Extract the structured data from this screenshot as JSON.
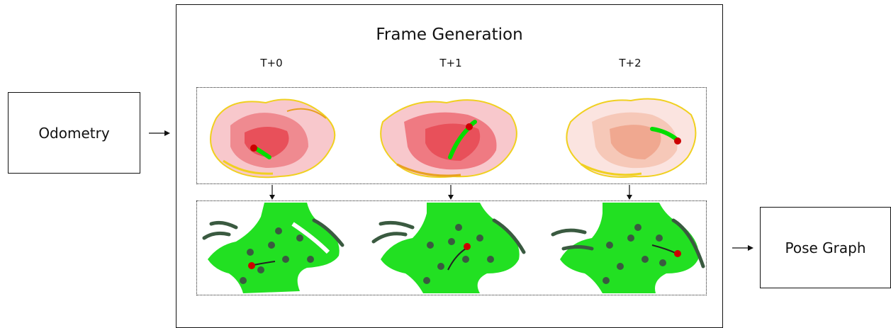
{
  "odometry": {
    "label": "Odometry"
  },
  "frame_generation": {
    "title": "Frame Generation",
    "columns": [
      {
        "label": "T+0"
      },
      {
        "label": "T+1"
      },
      {
        "label": "T+2"
      }
    ]
  },
  "pose_graph": {
    "label": "Pose Graph"
  },
  "colors": {
    "pointcloud_red": "#e8505a",
    "pointcloud_yellow": "#f0d020",
    "mesh_green": "#22e022",
    "mesh_dark": "#3a5a40",
    "trajectory_green": "#00dd00",
    "trajectory_red": "#cc0000"
  }
}
